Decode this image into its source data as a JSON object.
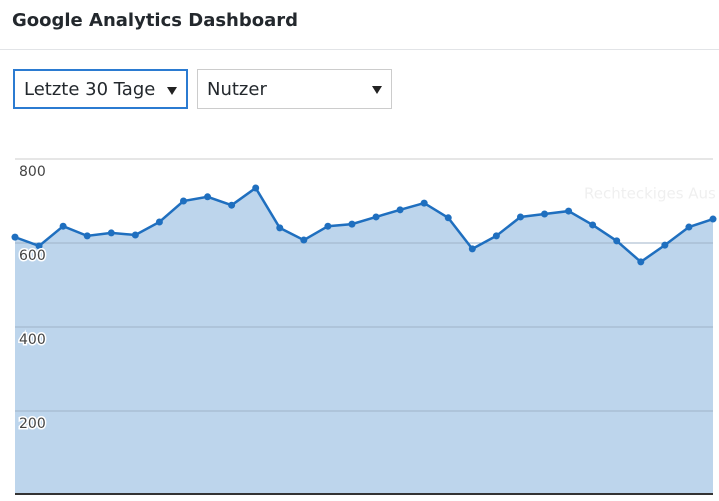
{
  "header": {
    "title": "Google Analytics Dashboard"
  },
  "controls": {
    "period": "Letzte 30 Tage",
    "metric": "Nutzer"
  },
  "chart_data": {
    "type": "area",
    "categories": [
      null,
      null,
      null,
      null,
      null,
      null,
      null,
      null,
      null,
      null,
      null,
      null,
      null,
      null,
      null,
      null,
      null,
      null,
      null,
      null,
      null,
      null,
      null,
      null,
      null,
      null,
      null,
      null,
      null,
      null
    ],
    "series": [
      {
        "color": "#1f6fbf",
        "area_color": "#bdd5ec",
        "values": [
          614,
          593,
          640,
          617,
          624,
          619,
          650,
          700,
          710,
          690,
          731,
          636,
          607,
          640,
          645,
          662,
          679,
          695,
          660,
          586,
          617,
          662,
          669,
          676,
          643,
          605,
          555,
          595,
          638,
          657
        ]
      }
    ],
    "ylim": [
      0,
      800
    ],
    "yticks": [
      200,
      400,
      600,
      800
    ],
    "grid": true,
    "annotation": "Rechteckiges Aus"
  }
}
